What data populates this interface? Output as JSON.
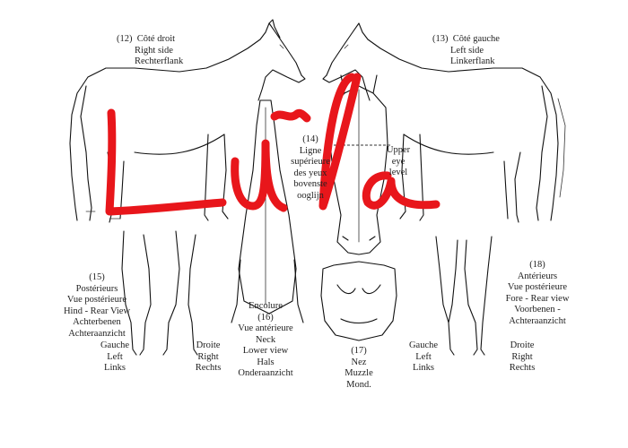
{
  "views": {
    "right_side": {
      "number": "(12)",
      "lines": [
        "Côté droit",
        "Right side",
        "Rechterflank"
      ]
    },
    "left_side": {
      "number": "(13)",
      "lines": [
        "Côté gauche",
        "Left side",
        "Linkerflank"
      ]
    },
    "eye_line": {
      "number": "(14)",
      "lines": [
        "Ligne",
        "supérieure",
        "des yeux",
        "bovenste",
        "ooglijn"
      ]
    },
    "upper_eye": {
      "lines": [
        "Upper",
        "eye",
        "level"
      ]
    },
    "hind": {
      "number": "(15)",
      "lines": [
        "Postérieurs",
        "Vue postérieure",
        "Hind - Rear View",
        "Achterbenen",
        "Achteraanzicht"
      ]
    },
    "hind_left": {
      "lines": [
        "Gauche",
        "Left",
        "Links"
      ]
    },
    "hind_right": {
      "lines": [
        "Droite",
        "Right",
        "Rechts"
      ]
    },
    "neck": {
      "number": "(16)",
      "lines": [
        "Encolure",
        "Vue antérieure",
        "Neck",
        "Lower view",
        "Hals",
        "Onderaanzicht"
      ]
    },
    "muzzle": {
      "number": "(17)",
      "lines": [
        "Nez",
        "Muzzle",
        "Mond."
      ]
    },
    "fore": {
      "number": "(18)",
      "lines": [
        "Antérieurs",
        "Vue postérieure",
        "Fore - Rear view",
        "Voorbenen -",
        "Achteraanzicht"
      ]
    },
    "fore_left": {
      "lines": [
        "Gauche",
        "Left",
        "Links"
      ]
    },
    "fore_right": {
      "lines": [
        "Droite",
        "Right",
        "Rechts"
      ]
    }
  },
  "overlay": {
    "text": "Lũla",
    "color": "#e8161b"
  }
}
